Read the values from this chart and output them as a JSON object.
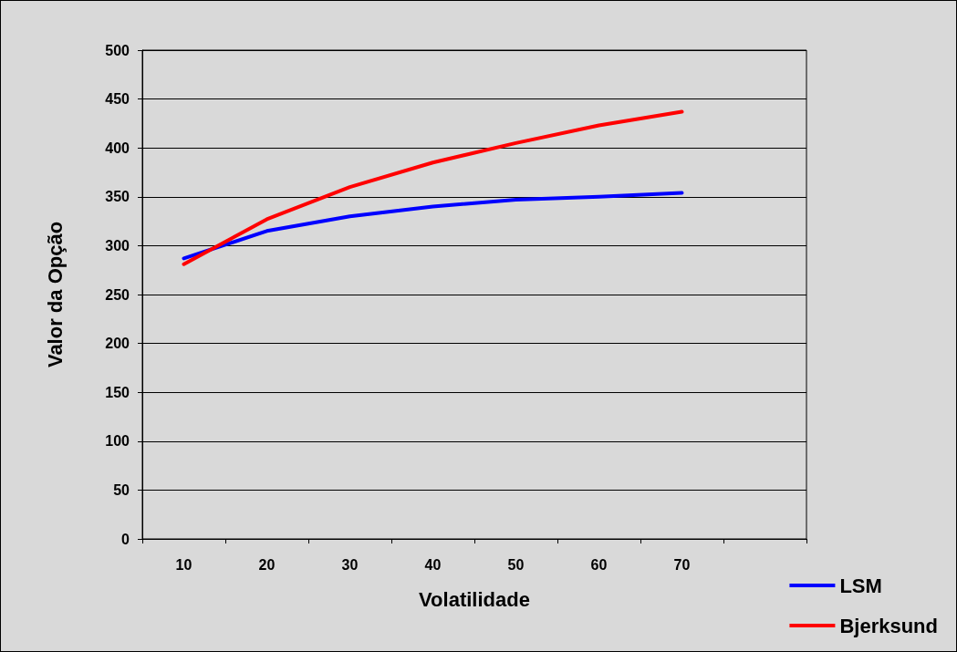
{
  "chart_data": {
    "type": "line",
    "xlabel": "Volatilidade",
    "ylabel": "Valor da Opção",
    "categories": [
      "10",
      "20",
      "30",
      "40",
      "50",
      "60",
      "70",
      null
    ],
    "series": [
      {
        "name": "LSM",
        "color": "#0000ff",
        "values": [
          287,
          315,
          330,
          340,
          347,
          350,
          354,
          null
        ]
      },
      {
        "name": "Bjerksund",
        "color": "#ff0000",
        "values": [
          281,
          327,
          360,
          385,
          405,
          423,
          437,
          null
        ]
      }
    ],
    "ylim": [
      0,
      500
    ],
    "yticks": [
      0,
      50,
      100,
      150,
      200,
      250,
      300,
      350,
      400,
      450,
      500
    ],
    "grid": "y",
    "legend": "bottom right",
    "marker": "none",
    "line_style": "solid"
  }
}
